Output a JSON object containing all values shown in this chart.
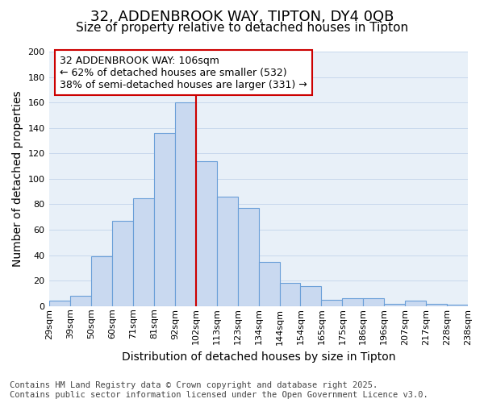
{
  "title": "32, ADDENBROOK WAY, TIPTON, DY4 0QB",
  "subtitle": "Size of property relative to detached houses in Tipton",
  "xlabel": "Distribution of detached houses by size in Tipton",
  "ylabel": "Number of detached properties",
  "bin_edges": [
    "29sqm",
    "39sqm",
    "50sqm",
    "60sqm",
    "71sqm",
    "81sqm",
    "92sqm",
    "102sqm",
    "113sqm",
    "123sqm",
    "134sqm",
    "144sqm",
    "154sqm",
    "165sqm",
    "175sqm",
    "186sqm",
    "196sqm",
    "207sqm",
    "217sqm",
    "228sqm",
    "238sqm"
  ],
  "values": [
    4,
    8,
    39,
    67,
    85,
    136,
    160,
    114,
    86,
    77,
    35,
    18,
    16,
    5,
    6,
    6,
    2,
    4,
    2,
    1
  ],
  "bar_color": "#c9d9f0",
  "bar_edge_color": "#6a9fd8",
  "vline_position": 7,
  "vline_color": "#cc0000",
  "ylim": [
    0,
    200
  ],
  "yticks": [
    0,
    20,
    40,
    60,
    80,
    100,
    120,
    140,
    160,
    180,
    200
  ],
  "annotation_title": "32 ADDENBROOK WAY: 106sqm",
  "annotation_line1": "← 62% of detached houses are smaller (532)",
  "annotation_line2": "38% of semi-detached houses are larger (331) →",
  "annotation_box_facecolor": "#ffffff",
  "annotation_box_edgecolor": "#cc0000",
  "footnote1": "Contains HM Land Registry data © Crown copyright and database right 2025.",
  "footnote2": "Contains public sector information licensed under the Open Government Licence v3.0.",
  "bg_color": "#ffffff",
  "plot_bg_color": "#e8f0f8",
  "grid_color": "#c8d8ec",
  "title_fontsize": 13,
  "subtitle_fontsize": 11,
  "axis_label_fontsize": 10,
  "tick_fontsize": 8,
  "annotation_fontsize": 9,
  "footnote_fontsize": 7.5
}
